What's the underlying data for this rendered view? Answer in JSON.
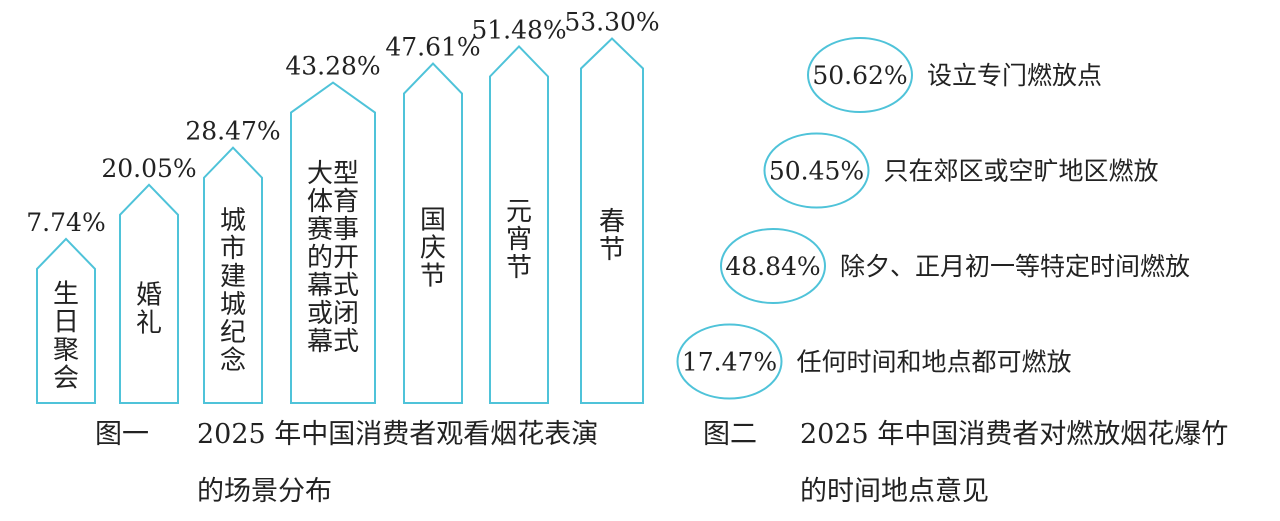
{
  "chart_data": [
    {
      "type": "arrow-bar",
      "figure_label": "图一",
      "caption": "2025 年中国消费者观看烟花表演的场景分布",
      "categories": [
        "生日聚会",
        "婚礼",
        "城市建城纪念",
        "大型体育赛事的开幕式或闭幕式",
        "国庆节",
        "元宵节",
        "春节"
      ],
      "values": [
        7.74,
        20.05,
        28.47,
        43.28,
        47.61,
        51.48,
        53.3
      ],
      "value_labels": [
        "7.74%",
        "20.05%",
        "28.47%",
        "43.28%",
        "47.61%",
        "51.48%",
        "53.30%"
      ],
      "color": "#4fc3d9"
    },
    {
      "type": "circle-list",
      "figure_label": "图二",
      "caption": "2025 年中国消费者对燃放烟花爆竹的时间地点意见",
      "categories": [
        "设立专门燃放点",
        "只在郊区或空旷地区燃放",
        "除夕、正月初一等特定时间燃放",
        "任何时间和地点都可燃放"
      ],
      "values": [
        50.62,
        50.45,
        48.84,
        17.47
      ],
      "value_labels": [
        "50.62%",
        "50.45%",
        "48.84%",
        "17.47%"
      ],
      "color": "#4fc3d9"
    }
  ]
}
